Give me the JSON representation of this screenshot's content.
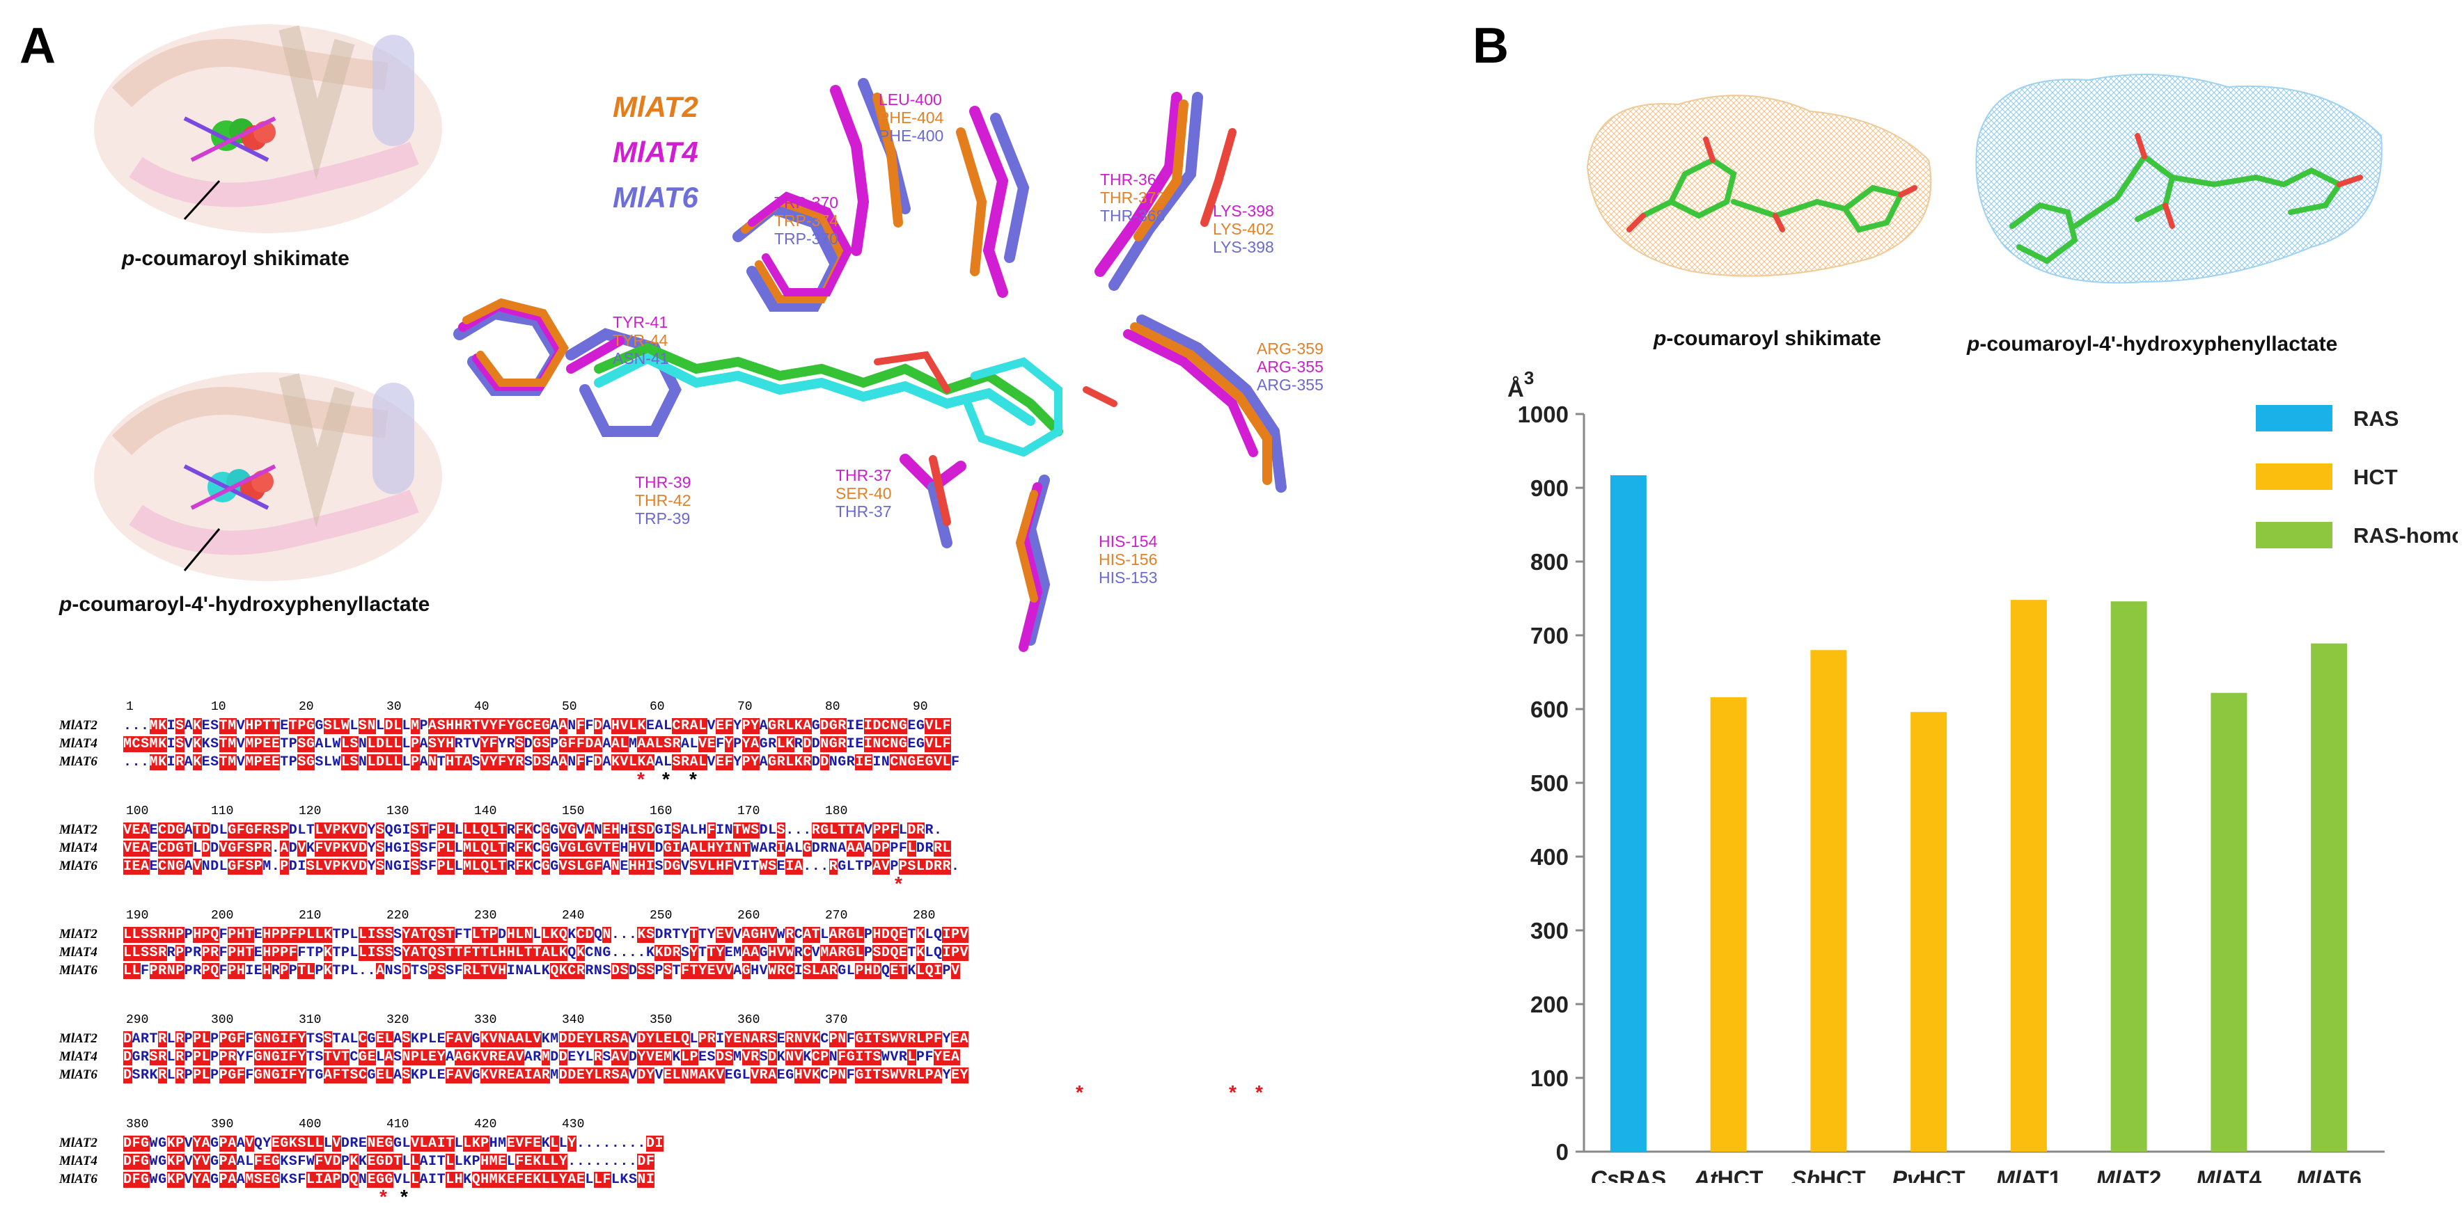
{
  "panel_a": {
    "letter": "A",
    "structure_captions": {
      "top_prefix": "p",
      "top_suffix": "-coumaroyl shikimate",
      "bottom_prefix": "p",
      "bottom_suffix": "-coumaroyl-4'-hydroxyphenyllactate"
    },
    "legend": [
      {
        "name": "MlAT2",
        "color": "#e47e1c"
      },
      {
        "name": "MlAT4",
        "color": "#d21ed2"
      },
      {
        "name": "MlAT6",
        "color": "#6e6ed8"
      }
    ],
    "residue_labels": [
      {
        "lines": [
          "LEU-400",
          "PHE-404",
          "PHE-400"
        ]
      },
      {
        "lines": [
          "TRP-370",
          "TRP-374",
          "TRP-370"
        ]
      },
      {
        "lines": [
          "THR-366",
          "THR-372",
          "THR-368"
        ]
      },
      {
        "lines": [
          "LYS-398",
          "LYS-402",
          "LYS-398"
        ]
      },
      {
        "lines": [
          "TYR-41",
          "TYR-44",
          "ASN-41"
        ]
      },
      {
        "lines": [
          "ARG-359",
          "ARG-355",
          "ARG-355"
        ],
        "colors": [
          "org",
          "mag",
          "blu"
        ]
      },
      {
        "lines": [
          "THR-39",
          "THR-42",
          "TRP-39"
        ]
      },
      {
        "lines": [
          "THR-37",
          "SER-40",
          "THR-37"
        ]
      },
      {
        "lines": [
          "HIS-154",
          "HIS-156",
          "HIS-153"
        ]
      }
    ],
    "alignment": {
      "blocks": [
        {
          "numbers": [
            "1",
            "10",
            "20",
            "30",
            "40",
            "50",
            "60",
            "70",
            "80",
            "90"
          ],
          "rows": [
            {
              "name": "MlAT2",
              "seq": "...MKISAKESTMVHPTTETPGGSLWLSNLDLLMPASHHRTVYFYGCEGAANFFDAHVLKEALCRALVEFYPYAGRLKAGDGRIEIDCNGEGVLF"
            },
            {
              "name": "MlAT4",
              "seq": "MCSMKISVKKSTMVMPEETPSGALWLSNLDLLLPASYHRTVYFYRSDGSPGFFDAAALMAALSRALVEFYPYAGRLKRDDNGRIEINCNGEGVLF"
            },
            {
              "name": "MlAT6",
              "seq": "...MKIRAKESTMVMPEETPSGSLWLSNLDLLLPANTHTASVYFYRSDSAANFFDAKVLKAALSRALVEFYPYAGRLKRDDNGRIEINCNGEGVLF"
            }
          ],
          "stars": [
            {
              "sym": "*",
              "color": "#e8141e"
            },
            {
              "sym": "*",
              "color": "#000000"
            },
            {
              "sym": "*",
              "color": "#000000"
            }
          ]
        },
        {
          "numbers": [
            "100",
            "110",
            "120",
            "130",
            "140",
            "150",
            "160",
            "170",
            "180"
          ],
          "rows": [
            {
              "name": "MlAT2",
              "seq": "VEAECDGATDDLGFGFRSPDLTLVPKVDYSQGISTFPLLLLQLTRFKCGGVGVANEHHISDGISALHFINTWSDLS...RGLTTAVPPFLDRR."
            },
            {
              "name": "MlAT4",
              "seq": "VEAECDGTLDDVGFSPR.ADVKFVPKVDYSHGISSFPLLMLQLTRFKCGGVGLGVTEHHVLDGIAALHYINTWARIALGDRNAAAADPPFLDRRL"
            },
            {
              "name": "MlAT6",
              "seq": "IEAECNGAVNDLGFSPM.PDISLVPKVDYSNGISSFPLLMLQLTRFKCGGVSLGFANEHHISDGVSVLHFVITWSEIA...RGLTPAVPPSLDRR."
            }
          ],
          "stars": [
            {
              "sym": "*",
              "color": "#e8141e"
            }
          ]
        },
        {
          "numbers": [
            "190",
            "200",
            "210",
            "220",
            "230",
            "240",
            "250",
            "260",
            "270",
            "280"
          ],
          "rows": [
            {
              "name": "MlAT2",
              "seq": "LLSSRHPPHPQFPHTEHPPFPLLKTPLLISSSYATQSTFTLTPDHLNLLKQKCDQN...KSDRTYTTYEVVAGHVWRCATLARGLPHDQETKLQIPV"
            },
            {
              "name": "MlAT4",
              "seq": "LLSSRRPPRPRFPHTEHPPFFTPKTPLLISSSYATQSTTFTTLHHLTTALKQKCNG....KKDRSYTTYEMAAGHVWRCVMARGLPSDQETKLQIPV"
            },
            {
              "name": "MlAT6",
              "seq": "LLFPRNPPRPQFPHIEHRPPTLPKTPL..ANSDTSPSSFRLTVHINALKQKCRRNSDSDSSPSTFTYEVVAGHVWRCISLARGLPHDQETKLQIPV"
            }
          ],
          "stars": []
        },
        {
          "numbers": [
            "290",
            "300",
            "310",
            "320",
            "330",
            "340",
            "350",
            "360",
            "370"
          ],
          "rows": [
            {
              "name": "MlAT2",
              "seq": "DARTRLRPPLPPGFFGNGIFYTSSTALCGELASKPLEFAVGKVNAALVKMDDEYLRSAVDYLELQLPRIYENARSERNVKCPNFGITSWVRLPFYEA"
            },
            {
              "name": "MlAT4",
              "seq": "DGRSRLRPPLPPRYFGNGIFYTSTVTCGELASNPLEYAAGKVREAVARMDDEYLRSAVDYVEMKLPESDSMVRSDKNVKCPNFGITSWVRLPFYEA"
            },
            {
              "name": "MlAT6",
              "seq": "DSRKRLRPPLPPGFFGNGIFYTGAFTSCGELASKPLEFAVGKVREAIARMDDEYLRSAVDYVELNMAKVEGLVRAEGHVKCPNFGITSWVRLPAYEY"
            }
          ],
          "stars": [
            {
              "sym": "*",
              "color": "#e8141e"
            },
            {
              "sym": "*",
              "color": "#e8141e"
            },
            {
              "sym": "*",
              "color": "#e8141e"
            }
          ]
        },
        {
          "numbers": [
            "380",
            "390",
            "400",
            "410",
            "420",
            "430"
          ],
          "rows": [
            {
              "name": "MlAT2",
              "seq": "DFGWGKPVYAGPAAVQYEGKSLLLVDRENEGGLVLAITLLKPHMEVFEKLLY........DI"
            },
            {
              "name": "MlAT4",
              "seq": "DFGWGKPVYVGPAALFEGKSFWFVDPKKEGDTLLAITLLKPHMELFEKLLY........DF"
            },
            {
              "name": "MlAT6",
              "seq": "DFGWGKPVYAGPAAMSEGKSFLIAPDQNEGGVLLAITLHKQHMKEFEKLLYAELLFLKSNI"
            }
          ],
          "stars": [
            {
              "sym": "*",
              "color": "#e8141e"
            },
            {
              "sym": "*",
              "color": "#000000"
            }
          ]
        }
      ]
    }
  },
  "panel_b": {
    "letter": "B",
    "mol_captions": {
      "left_prefix": "p",
      "left_suffix": "-coumaroyl shikimate",
      "right_prefix": "p",
      "right_suffix": "-coumaroyl-4'-hydroxyphenyllactate"
    }
  },
  "chart_data": {
    "type": "bar",
    "title": "",
    "ylabel": "Å3",
    "ylabel_base": "Å",
    "ylabel_sup": "3",
    "xlabel": "",
    "ylim": [
      0,
      1000
    ],
    "yticks": [
      0,
      100,
      200,
      300,
      400,
      500,
      600,
      700,
      800,
      900,
      1000
    ],
    "categories": [
      {
        "prefix": "Cs",
        "suffix": "RAS"
      },
      {
        "prefix": "At",
        "suffix": "HCT"
      },
      {
        "prefix": "Sb",
        "suffix": "HCT"
      },
      {
        "prefix": "Pv",
        "suffix": "HCT"
      },
      {
        "prefix": "Ml",
        "suffix": "AT1"
      },
      {
        "prefix": "Ml",
        "suffix": "AT2"
      },
      {
        "prefix": "Ml",
        "suffix": "AT4"
      },
      {
        "prefix": "Ml",
        "suffix": "AT6"
      }
    ],
    "values": [
      917,
      616,
      680,
      596,
      748,
      746,
      622,
      689
    ],
    "groups": [
      "RAS",
      "HCT",
      "HCT",
      "HCT",
      "HCT",
      "RAS-homo",
      "RAS-homo",
      "RAS-homo"
    ],
    "legend": [
      {
        "name": "RAS",
        "color": "#1ab0e8"
      },
      {
        "name": "HCT",
        "color": "#fbbd0e"
      },
      {
        "name": "RAS-homo",
        "color": "#8dc63f"
      }
    ],
    "legend_position": "top-right",
    "grid": false
  }
}
